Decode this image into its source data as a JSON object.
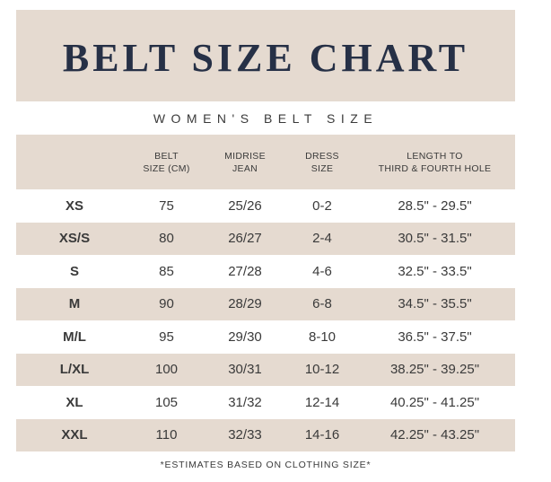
{
  "title": "BELT SIZE CHART",
  "subtitle": "WOMEN'S BELT SIZE",
  "headers": [
    {
      "line1": "",
      "line2": ""
    },
    {
      "line1": "BELT",
      "line2": "SIZE (CM)"
    },
    {
      "line1": "MIDRISE",
      "line2": "JEAN"
    },
    {
      "line1": "DRESS",
      "line2": "SIZE"
    },
    {
      "line1": "LENGTH TO",
      "line2": "THIRD & FOURTH HOLE"
    }
  ],
  "rows": [
    {
      "size": "XS",
      "belt_cm": "75",
      "jean": "25/26",
      "dress": "0-2",
      "length": "28.5\" - 29.5\""
    },
    {
      "size": "XS/S",
      "belt_cm": "80",
      "jean": "26/27",
      "dress": "2-4",
      "length": "30.5\" - 31.5\""
    },
    {
      "size": "S",
      "belt_cm": "85",
      "jean": "27/28",
      "dress": "4-6",
      "length": "32.5\" - 33.5\""
    },
    {
      "size": "M",
      "belt_cm": "90",
      "jean": "28/29",
      "dress": "6-8",
      "length": "34.5\" - 35.5\""
    },
    {
      "size": "M/L",
      "belt_cm": "95",
      "jean": "29/30",
      "dress": "8-10",
      "length": "36.5\" - 37.5\""
    },
    {
      "size": "L/XL",
      "belt_cm": "100",
      "jean": "30/31",
      "dress": "10-12",
      "length": "38.25\" - 39.25\""
    },
    {
      "size": "XL",
      "belt_cm": "105",
      "jean": "31/32",
      "dress": "12-14",
      "length": "40.25\" - 41.25\""
    },
    {
      "size": "XXL",
      "belt_cm": "110",
      "jean": "32/33",
      "dress": "14-16",
      "length": "42.25\" - 43.25\""
    }
  ],
  "footnote": "*ESTIMATES BASED ON CLOTHING SIZE*",
  "colors": {
    "band": "#e5dad0",
    "title": "#263046",
    "text": "#3a3a3a"
  }
}
